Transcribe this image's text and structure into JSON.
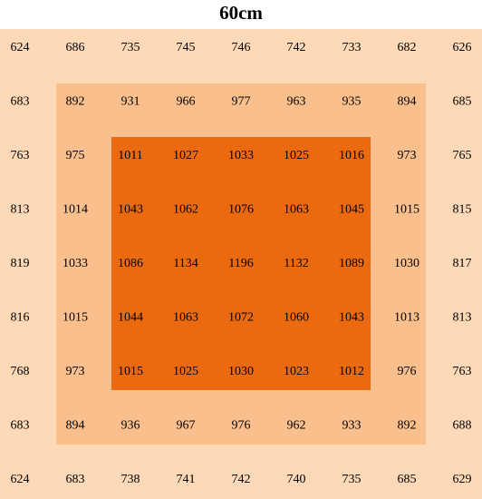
{
  "title": "60cm",
  "grid": {
    "rows": [
      [
        624,
        686,
        735,
        745,
        746,
        742,
        733,
        682,
        626
      ],
      [
        683,
        892,
        931,
        966,
        977,
        963,
        935,
        894,
        685
      ],
      [
        763,
        975,
        1011,
        1027,
        1033,
        1025,
        1016,
        973,
        765
      ],
      [
        813,
        1014,
        1043,
        1062,
        1076,
        1063,
        1045,
        1015,
        815
      ],
      [
        819,
        1033,
        1086,
        1134,
        1196,
        1132,
        1089,
        1030,
        817
      ],
      [
        816,
        1015,
        1044,
        1063,
        1072,
        1060,
        1043,
        1013,
        813
      ],
      [
        768,
        973,
        1015,
        1025,
        1030,
        1023,
        1012,
        976,
        763
      ],
      [
        683,
        894,
        936,
        967,
        976,
        962,
        933,
        892,
        688
      ],
      [
        624,
        683,
        738,
        741,
        742,
        740,
        735,
        685,
        629
      ]
    ]
  }
}
